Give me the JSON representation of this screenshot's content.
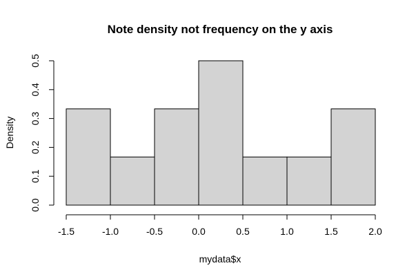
{
  "chart_data": {
    "type": "bar",
    "subtype": "histogram",
    "title": "Note density not frequency on the y axis",
    "xlabel": "mydata$x",
    "ylabel": "Density",
    "bins": [
      {
        "start": -1.5,
        "end": -1.0,
        "density": 0.3333
      },
      {
        "start": -1.0,
        "end": -0.5,
        "density": 0.1667
      },
      {
        "start": -0.5,
        "end": 0.0,
        "density": 0.3333
      },
      {
        "start": 0.0,
        "end": 0.5,
        "density": 0.5
      },
      {
        "start": 0.5,
        "end": 1.0,
        "density": 0.1667
      },
      {
        "start": 1.0,
        "end": 1.5,
        "density": 0.1667
      },
      {
        "start": 1.5,
        "end": 2.0,
        "density": 0.3333
      }
    ],
    "xlim": [
      -1.5,
      2.0
    ],
    "ylim": [
      0,
      0.5
    ],
    "xticks": [
      "-1.5",
      "-1.0",
      "-0.5",
      "0.0",
      "0.5",
      "1.0",
      "1.5",
      "2.0"
    ],
    "yticks": [
      "0.0",
      "0.1",
      "0.2",
      "0.3",
      "0.4",
      "0.5"
    ],
    "bar_color": "#d3d3d3",
    "grid": false,
    "legend": "none"
  }
}
